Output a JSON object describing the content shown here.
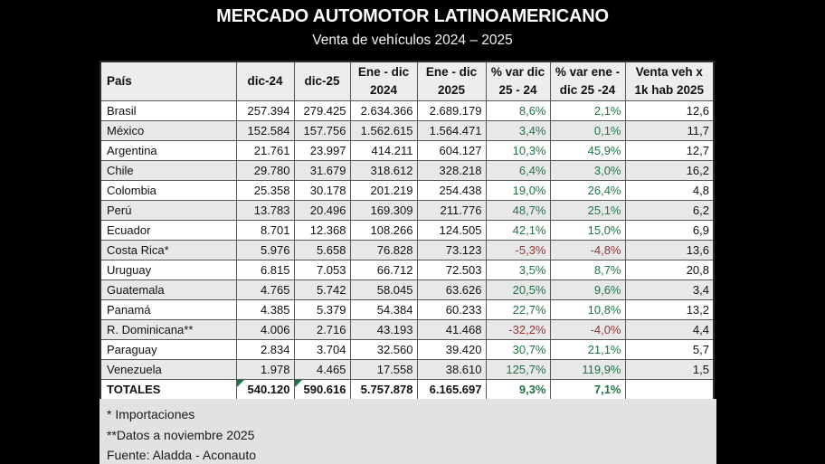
{
  "title": "MERCADO AUTOMOTOR LATINOAMERICANO",
  "subtitle": "Venta de vehículos 2024 – 2025",
  "colors": {
    "background": "#000000",
    "positive": "#217346",
    "negative": "#953735",
    "header_bg": "#ededed",
    "row_alt": "#e8e8e8",
    "panel_bg": "#e2e2e2",
    "flag": "#1e7a3c"
  },
  "chart_data": {
    "type": "table",
    "columns": [
      [
        "País"
      ],
      [
        "dic-24"
      ],
      [
        "dic-25"
      ],
      [
        "Ene - dic",
        "2024"
      ],
      [
        "Ene - dic",
        "2025"
      ],
      [
        "% var dic",
        "25 - 24"
      ],
      [
        "% var ene -",
        "dic 25 -24"
      ],
      [
        "Venta veh x",
        "1k hab 2025"
      ]
    ],
    "rows": [
      [
        "Brasil",
        "257.394",
        "279.425",
        "2.634.366",
        "2.689.179",
        "8,6%",
        "2,1%",
        "12,6"
      ],
      [
        "México",
        "152.584",
        "157.756",
        "1.562.615",
        "1.564.471",
        "3,4%",
        "0,1%",
        "11,7"
      ],
      [
        "Argentina",
        "21.761",
        "23.997",
        "414.211",
        "604.127",
        "10,3%",
        "45,9%",
        "12,7"
      ],
      [
        "Chile",
        "29.780",
        "31.679",
        "318.612",
        "328.218",
        "6,4%",
        "3,0%",
        "16,2"
      ],
      [
        "Colombia",
        "25.358",
        "30.178",
        "201.219",
        "254.438",
        "19,0%",
        "26,4%",
        "4,8"
      ],
      [
        "Perú",
        "13.783",
        "20.496",
        "169.309",
        "211.776",
        "48,7%",
        "25,1%",
        "6,2"
      ],
      [
        "Ecuador",
        "8.701",
        "12.368",
        "108.266",
        "124.505",
        "42,1%",
        "15,0%",
        "6,9"
      ],
      [
        "Costa Rica*",
        "5.976",
        "5.658",
        "76.828",
        "73.123",
        "-5,3%",
        "-4,8%",
        "13,6"
      ],
      [
        "Uruguay",
        "6.815",
        "7.053",
        "66.712",
        "72.503",
        "3,5%",
        "8,7%",
        "20,8"
      ],
      [
        "Guatemala",
        "4.765",
        "5.742",
        "58.045",
        "63.626",
        "20,5%",
        "9,6%",
        "3,4"
      ],
      [
        "Panamá",
        "4.385",
        "5.379",
        "54.384",
        "60.233",
        "22,7%",
        "10,8%",
        "13,2"
      ],
      [
        "R. Dominicana**",
        "4.006",
        "2.716",
        "43.193",
        "41.468",
        "-32,2%",
        "-4,0%",
        "4,4"
      ],
      [
        "Paraguay",
        "2.834",
        "3.704",
        "32.560",
        "39.420",
        "30,7%",
        "21,1%",
        "5,7"
      ],
      [
        "Venezuela",
        "1.978",
        "4.465",
        "17.558",
        "38.610",
        "125,7%",
        "119,9%",
        "1,5"
      ]
    ],
    "totals": [
      "TOTALES",
      "540.120",
      "590.616",
      "5.757.878",
      "6.165.697",
      "9,3%",
      "7,1%",
      ""
    ],
    "totals_flagged_columns": [
      1,
      2
    ]
  },
  "footnotes": [
    "* Importaciones",
    "**Datos a noviembre 2025",
    "Fuente: Aladda - Aconauto"
  ]
}
